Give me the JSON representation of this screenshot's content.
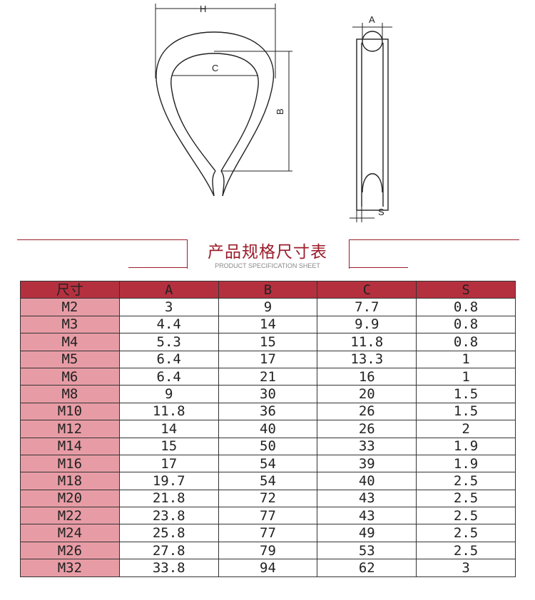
{
  "diagram": {
    "labels": {
      "H": "H",
      "C": "C",
      "B": "B",
      "A": "A",
      "S": "S"
    }
  },
  "section": {
    "title": "产品规格尺寸表",
    "subtitle": "PRODUCT SPECIFICATION SHEET"
  },
  "colors": {
    "accent": "#9b1c2a",
    "header_bg": "#b5303f",
    "size_col_bg": "#e79ca5"
  },
  "table": {
    "headers": [
      "尺寸",
      "A",
      "B",
      "C",
      "S"
    ],
    "rows": [
      [
        "M2",
        "3",
        "9",
        "7.7",
        "0.8"
      ],
      [
        "M3",
        "4.4",
        "14",
        "9.9",
        "0.8"
      ],
      [
        "M4",
        "5.3",
        "15",
        "11.8",
        "0.8"
      ],
      [
        "M5",
        "6.4",
        "17",
        "13.3",
        "1"
      ],
      [
        "M6",
        "6.4",
        "21",
        "16",
        "1"
      ],
      [
        "M8",
        "9",
        "30",
        "20",
        "1.5"
      ],
      [
        "M10",
        "11.8",
        "36",
        "26",
        "1.5"
      ],
      [
        "M12",
        "14",
        "40",
        "26",
        "2"
      ],
      [
        "M14",
        "15",
        "50",
        "33",
        "1.9"
      ],
      [
        "M16",
        "17",
        "54",
        "39",
        "1.9"
      ],
      [
        "M18",
        "19.7",
        "54",
        "40",
        "2.5"
      ],
      [
        "M20",
        "21.8",
        "72",
        "43",
        "2.5"
      ],
      [
        "M22",
        "23.8",
        "77",
        "43",
        "2.5"
      ],
      [
        "M24",
        "25.8",
        "77",
        "49",
        "2.5"
      ],
      [
        "M26",
        "27.8",
        "79",
        "53",
        "2.5"
      ],
      [
        "M32",
        "33.8",
        "94",
        "62",
        "3"
      ]
    ]
  }
}
